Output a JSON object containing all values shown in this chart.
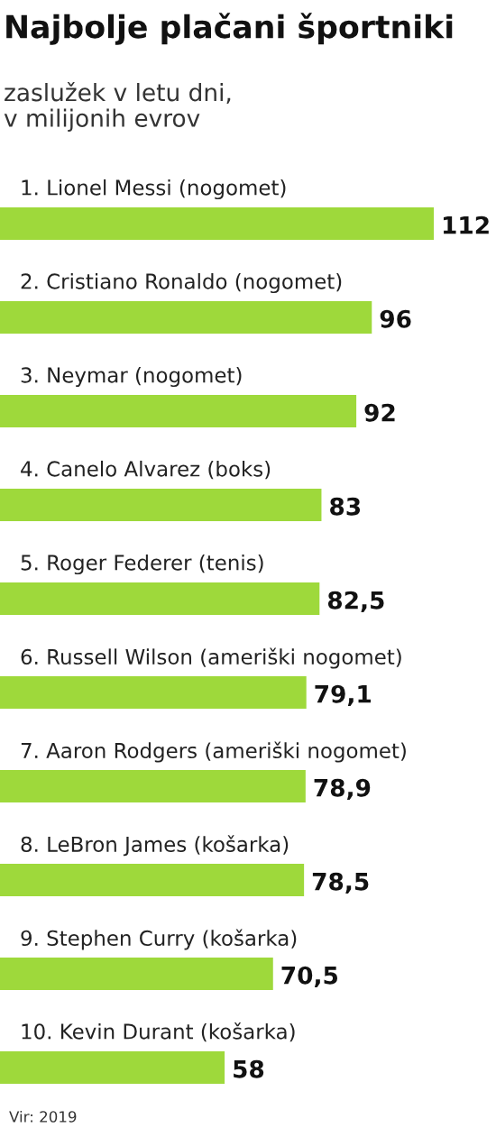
{
  "chart_data": {
    "type": "bar",
    "orientation": "horizontal",
    "title": "Najbolje plačani športniki",
    "subtitle": "zaslužek v letu dni,\nv milijonih evrov",
    "categories": [
      "1. Lionel Messi (nogomet)",
      "2. Cristiano Ronaldo (nogomet)",
      "3. Neymar (nogomet)",
      "4. Canelo Alvarez (boks)",
      "5. Roger Federer (tenis)",
      "6. Russell Wilson (ameriški nogomet)",
      "7. Aaron Rodgers (ameriški nogomet)",
      "8. LeBron James (košarka)",
      "9. Stephen Curry (košarka)",
      "10. Kevin Durant (košarka)"
    ],
    "values": [
      112,
      96,
      92,
      83,
      82.5,
      79.1,
      78.9,
      78.5,
      70.5,
      58
    ],
    "value_labels": [
      "112",
      "96",
      "92",
      "83",
      "82,5",
      "79,1",
      "78,9",
      "78,5",
      "70,5",
      "58"
    ],
    "color": "#9ed93b",
    "annotations": [
      "Vir: 2019"
    ]
  }
}
